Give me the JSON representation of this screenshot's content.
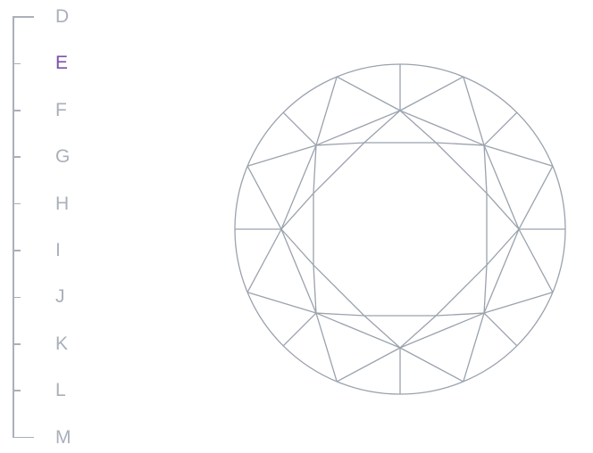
{
  "color_scale": {
    "grades": [
      "D",
      "E",
      "F",
      "G",
      "H",
      "I",
      "J",
      "K",
      "L",
      "M"
    ],
    "selected": "E",
    "colors": {
      "selected": "#7b4fa8",
      "default": "#a9b0ba",
      "diamond_stroke": "#9aa2ad"
    }
  },
  "diamond": {
    "icon": "round-brilliant-diamond-icon"
  }
}
